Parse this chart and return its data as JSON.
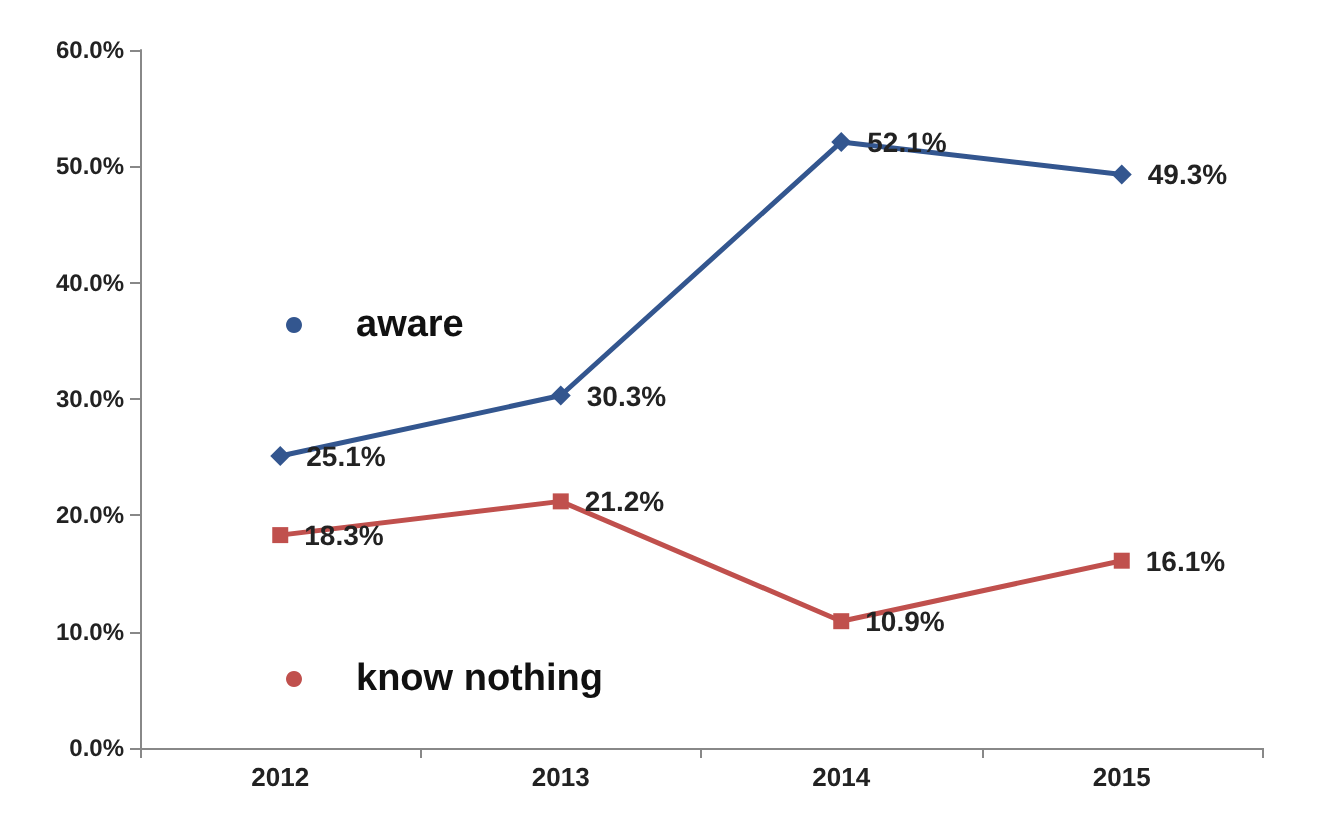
{
  "chart_data": {
    "type": "line",
    "categories": [
      "2012",
      "2013",
      "2014",
      "2015"
    ],
    "series": [
      {
        "name": "aware",
        "color": "#33568f",
        "values": [
          25.1,
          30.3,
          52.1,
          49.3
        ],
        "marker": "diamond",
        "value_labels": [
          "25.1%",
          "30.3%",
          "52.1%",
          "49.3%"
        ]
      },
      {
        "name": "know nothing",
        "color": "#c0504d",
        "values": [
          18.3,
          21.2,
          10.9,
          16.1
        ],
        "marker": "square",
        "value_labels": [
          "18.3%",
          "21.2%",
          "10.9%",
          "16.1%"
        ]
      }
    ],
    "ylim": [
      0,
      60
    ],
    "yticks": [
      {
        "value": 0,
        "label": "0.0%"
      },
      {
        "value": 10,
        "label": "10.0%"
      },
      {
        "value": 20,
        "label": "20.0%"
      },
      {
        "value": 30,
        "label": "30.0%"
      },
      {
        "value": 40,
        "label": "40.0%"
      },
      {
        "value": 50,
        "label": "50.0%"
      },
      {
        "value": 60,
        "label": "60.0%"
      }
    ],
    "grid": false,
    "legend": "left"
  }
}
